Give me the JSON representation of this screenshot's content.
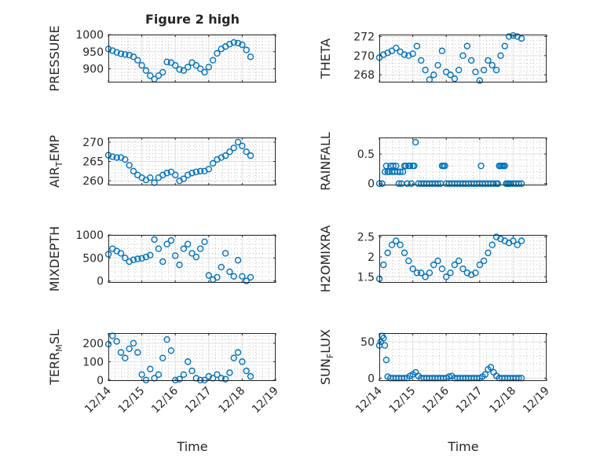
{
  "chart_data": [
    {
      "type": "scatter",
      "title": "Figure 2 high",
      "ylabel": "PRESSURE",
      "xlabel": "",
      "xlim": [
        "12/14",
        "12/19"
      ],
      "ylim": [
        860,
        1000
      ],
      "yticks": [
        900,
        950,
        1000
      ],
      "ytick_labels": [
        "900",
        "950",
        "1000"
      ],
      "xtick_labels": [],
      "grid": true,
      "minor_grid": true,
      "x": [
        "12/14 00:00",
        "12/14 03:00",
        "12/14 06:00",
        "12/14 09:00",
        "12/14 12:00",
        "12/14 15:00",
        "12/14 18:00",
        "12/14 21:00",
        "12/15 00:00",
        "12/15 03:00",
        "12/15 06:00",
        "12/15 09:00",
        "12/15 12:00",
        "12/15 15:00",
        "12/15 18:00",
        "12/15 21:00",
        "12/16 00:00",
        "12/16 03:00",
        "12/16 06:00",
        "12/16 09:00",
        "12/16 12:00",
        "12/16 15:00",
        "12/16 18:00",
        "12/16 21:00",
        "12/17 00:00",
        "12/17 03:00",
        "12/17 06:00",
        "12/17 09:00",
        "12/17 12:00",
        "12/17 15:00",
        "12/17 18:00",
        "12/17 21:00",
        "12/18 00:00",
        "12/18 03:00",
        "12/18 06:00"
      ],
      "y": [
        958,
        953,
        948,
        944,
        942,
        940,
        935,
        925,
        910,
        895,
        880,
        870,
        880,
        890,
        920,
        918,
        910,
        898,
        895,
        905,
        918,
        910,
        900,
        890,
        905,
        925,
        945,
        958,
        965,
        972,
        977,
        975,
        970,
        955,
        935
      ]
    },
    {
      "type": "scatter",
      "title": "",
      "ylabel": "THETA",
      "xlabel": "",
      "xlim": [
        "12/14",
        "12/19"
      ],
      "ylim": [
        267.2,
        272.2
      ],
      "yticks": [
        268,
        270,
        272
      ],
      "ytick_labels": [
        "268",
        "270",
        "272"
      ],
      "xtick_labels": [],
      "grid": true,
      "minor_grid": true,
      "x": [
        "12/14 00:00",
        "12/14 03:00",
        "12/14 06:00",
        "12/14 09:00",
        "12/14 12:00",
        "12/14 15:00",
        "12/14 18:00",
        "12/14 21:00",
        "12/15 00:00",
        "12/15 03:00",
        "12/15 06:00",
        "12/15 09:00",
        "12/15 12:00",
        "12/15 15:00",
        "12/15 18:00",
        "12/15 21:00",
        "12/16 00:00",
        "12/16 03:00",
        "12/16 06:00",
        "12/16 09:00",
        "12/16 12:00",
        "12/16 15:00",
        "12/16 18:00",
        "12/16 21:00",
        "12/17 00:00",
        "12/17 03:00",
        "12/17 06:00",
        "12/17 09:00",
        "12/17 12:00",
        "12/17 15:00",
        "12/17 18:00",
        "12/17 21:00",
        "12/18 00:00",
        "12/18 03:00",
        "12/18 06:00"
      ],
      "y": [
        269.8,
        270.1,
        270.3,
        270.5,
        270.8,
        270.4,
        270.1,
        270.0,
        270.2,
        271.0,
        269.5,
        268.5,
        267.5,
        268.0,
        269.0,
        270.5,
        268.3,
        268.0,
        267.6,
        268.5,
        270.0,
        271.0,
        269.5,
        268.3,
        267.4,
        268.5,
        269.5,
        269.0,
        268.5,
        270.0,
        271.0,
        272.0,
        272.1,
        272.0,
        271.8
      ]
    },
    {
      "type": "scatter",
      "title": "",
      "ylabel": "AIR_TEMP",
      "xlabel": "",
      "xlim": [
        "12/14",
        "12/19"
      ],
      "ylim": [
        258.8,
        271.2
      ],
      "yticks": [
        260,
        265,
        270
      ],
      "ytick_labels": [
        "260",
        "265",
        "270"
      ],
      "xtick_labels": [],
      "grid": true,
      "minor_grid": true,
      "x": [
        "12/14 00:00",
        "12/14 03:00",
        "12/14 06:00",
        "12/14 09:00",
        "12/14 12:00",
        "12/14 15:00",
        "12/14 18:00",
        "12/14 21:00",
        "12/15 00:00",
        "12/15 03:00",
        "12/15 06:00",
        "12/15 09:00",
        "12/15 12:00",
        "12/15 15:00",
        "12/15 18:00",
        "12/15 21:00",
        "12/16 00:00",
        "12/16 03:00",
        "12/16 06:00",
        "12/16 09:00",
        "12/16 12:00",
        "12/16 15:00",
        "12/16 18:00",
        "12/16 21:00",
        "12/17 00:00",
        "12/17 03:00",
        "12/17 06:00",
        "12/17 09:00",
        "12/17 12:00",
        "12/17 15:00",
        "12/17 18:00",
        "12/17 21:00",
        "12/18 00:00",
        "12/18 03:00",
        "12/18 06:00"
      ],
      "y": [
        266.6,
        266.2,
        266.0,
        266.0,
        265.5,
        264.0,
        262.5,
        261.5,
        260.8,
        260.2,
        260.8,
        259.5,
        260.8,
        261.5,
        262.0,
        262.3,
        261.5,
        260.0,
        260.5,
        261.5,
        262.0,
        262.3,
        262.5,
        262.5,
        263.0,
        264.5,
        265.5,
        266.0,
        266.5,
        267.5,
        268.5,
        270.0,
        269.0,
        267.5,
        266.5
      ]
    },
    {
      "type": "scatter",
      "title": "",
      "ylabel": "RAINFALL",
      "xlabel": "",
      "xlim": [
        "12/14",
        "12/19"
      ],
      "ylim": [
        -0.03,
        0.78
      ],
      "yticks": [
        0,
        0.5
      ],
      "ytick_labels": [
        "0",
        "0.5"
      ],
      "xtick_labels": [],
      "grid": true,
      "minor_grid": true,
      "x": [
        "12/14 00:00",
        "12/14 02:00",
        "12/14 04:00",
        "12/14 05:00",
        "12/14 06:00",
        "12/14 07:00",
        "12/14 08:00",
        "12/14 09:00",
        "12/14 10:00",
        "12/14 11:00",
        "12/14 12:00",
        "12/14 13:00",
        "12/14 14:00",
        "12/14 15:00",
        "12/14 16:00",
        "12/14 17:00",
        "12/14 18:00",
        "12/14 19:00",
        "12/14 20:00",
        "12/14 21:00",
        "12/14 22:00",
        "12/14 23:00",
        "12/15 00:00",
        "12/15 01:00",
        "12/15 02:00",
        "12/15 04:00",
        "12/15 06:00",
        "12/15 08:00",
        "12/15 10:00",
        "12/15 12:00",
        "12/15 14:00",
        "12/15 16:00",
        "12/15 18:00",
        "12/15 20:00",
        "12/15 21:00",
        "12/15 22:00",
        "12/15 23:00",
        "12/16 00:00",
        "12/16 02:00",
        "12/16 04:00",
        "12/16 06:00",
        "12/16 08:00",
        "12/16 10:00",
        "12/16 12:00",
        "12/16 14:00",
        "12/16 16:00",
        "12/16 18:00",
        "12/16 20:00",
        "12/16 22:00",
        "12/17 00:00",
        "12/17 01:00",
        "12/17 02:00",
        "12/17 04:00",
        "12/17 06:00",
        "12/17 08:00",
        "12/17 10:00",
        "12/17 12:00",
        "12/17 13:00",
        "12/17 14:00",
        "12/17 15:00",
        "12/17 16:00",
        "12/17 17:00",
        "12/17 18:00",
        "12/17 19:00",
        "12/17 20:00",
        "12/17 21:00",
        "12/17 22:00",
        "12/18 00:00",
        "12/18 02:00",
        "12/18 04:00",
        "12/18 06:00"
      ],
      "y": [
        0,
        0,
        0.2,
        0.3,
        0.2,
        0.2,
        0.3,
        0.2,
        0.3,
        0.2,
        0.3,
        0.2,
        0,
        0.2,
        0,
        0.2,
        0.3,
        0.3,
        0,
        0.3,
        0.3,
        0,
        0.3,
        0.3,
        0.7,
        0,
        0,
        0,
        0,
        0,
        0,
        0,
        0,
        0,
        0.3,
        0.3,
        0.3,
        0,
        0,
        0,
        0,
        0,
        0,
        0,
        0,
        0,
        0,
        0,
        0,
        0,
        0.3,
        0,
        0,
        0,
        0,
        0,
        0,
        0,
        0.3,
        0.3,
        0.3,
        0.3,
        0.3,
        0,
        0,
        0,
        0,
        0,
        0,
        0,
        0
      ]
    },
    {
      "type": "scatter",
      "title": "",
      "ylabel": "MIXDEPTH",
      "xlabel": "",
      "xlim": [
        "12/14",
        "12/19"
      ],
      "ylim": [
        -40,
        1000
      ],
      "yticks": [
        0,
        500,
        1000
      ],
      "ytick_labels": [
        "0",
        "500",
        "1000"
      ],
      "xtick_labels": [],
      "grid": true,
      "minor_grid": true,
      "x": [
        "12/14 00:00",
        "12/14 03:00",
        "12/14 06:00",
        "12/14 09:00",
        "12/14 12:00",
        "12/14 15:00",
        "12/14 18:00",
        "12/14 21:00",
        "12/15 00:00",
        "12/15 03:00",
        "12/15 06:00",
        "12/15 09:00",
        "12/15 12:00",
        "12/15 15:00",
        "12/15 18:00",
        "12/15 21:00",
        "12/16 00:00",
        "12/16 03:00",
        "12/16 06:00",
        "12/16 09:00",
        "12/16 12:00",
        "12/16 15:00",
        "12/16 18:00",
        "12/16 21:00",
        "12/17 00:00",
        "12/17 03:00",
        "12/17 06:00",
        "12/17 09:00",
        "12/17 12:00",
        "12/17 15:00",
        "12/17 18:00",
        "12/17 21:00",
        "12/18 00:00",
        "12/18 03:00",
        "12/18 06:00"
      ],
      "y": [
        580,
        700,
        650,
        600,
        500,
        420,
        460,
        480,
        490,
        520,
        560,
        900,
        700,
        420,
        800,
        880,
        550,
        350,
        700,
        800,
        600,
        520,
        700,
        850,
        120,
        30,
        80,
        300,
        600,
        200,
        100,
        450,
        100,
        0,
        80
      ]
    },
    {
      "type": "scatter",
      "title": "",
      "ylabel": "H2OMIXRA",
      "xlabel": "",
      "xlim": [
        "12/14",
        "12/19"
      ],
      "ylim": [
        1.35,
        2.55
      ],
      "yticks": [
        1.5,
        2,
        2.5
      ],
      "ytick_labels": [
        "1.5",
        "2",
        "2.5"
      ],
      "xtick_labels": [],
      "grid": true,
      "minor_grid": true,
      "x": [
        "12/14 00:00",
        "12/14 03:00",
        "12/14 06:00",
        "12/14 09:00",
        "12/14 12:00",
        "12/14 15:00",
        "12/14 18:00",
        "12/14 21:00",
        "12/15 00:00",
        "12/15 03:00",
        "12/15 06:00",
        "12/15 09:00",
        "12/15 12:00",
        "12/15 15:00",
        "12/15 18:00",
        "12/15 21:00",
        "12/16 00:00",
        "12/16 03:00",
        "12/16 06:00",
        "12/16 09:00",
        "12/16 12:00",
        "12/16 15:00",
        "12/16 18:00",
        "12/16 21:00",
        "12/17 00:00",
        "12/17 03:00",
        "12/17 06:00",
        "12/17 09:00",
        "12/17 12:00",
        "12/17 15:00",
        "12/17 18:00",
        "12/17 21:00",
        "12/18 00:00",
        "12/18 03:00",
        "12/18 06:00"
      ],
      "y": [
        1.45,
        1.8,
        2.1,
        2.3,
        2.4,
        2.3,
        2.1,
        1.9,
        1.7,
        1.6,
        1.6,
        1.5,
        1.6,
        1.8,
        1.9,
        1.7,
        1.5,
        1.6,
        1.8,
        1.9,
        1.7,
        1.6,
        1.55,
        1.6,
        1.8,
        1.9,
        2.1,
        2.3,
        2.5,
        2.45,
        2.4,
        2.35,
        2.4,
        2.3,
        2.4
      ]
    },
    {
      "type": "scatter",
      "title": "",
      "ylabel": "TERR_MSL",
      "xlabel": "",
      "xlim": [
        "12/14",
        "12/19"
      ],
      "ylim": [
        -5,
        255
      ],
      "yticks": [
        0,
        100,
        200
      ],
      "ytick_labels": [
        "0",
        "100",
        "200"
      ],
      "xtick_labels": [],
      "grid": true,
      "minor_grid": true,
      "x": [
        "12/14 00:00",
        "12/14 03:00",
        "12/14 06:00",
        "12/14 09:00",
        "12/14 12:00",
        "12/14 15:00",
        "12/14 18:00",
        "12/14 21:00",
        "12/15 00:00",
        "12/15 03:00",
        "12/15 06:00",
        "12/15 09:00",
        "12/15 12:00",
        "12/15 15:00",
        "12/15 18:00",
        "12/15 21:00",
        "12/16 00:00",
        "12/16 03:00",
        "12/16 06:00",
        "12/16 09:00",
        "12/16 12:00",
        "12/16 15:00",
        "12/16 18:00",
        "12/16 21:00",
        "12/17 00:00",
        "12/17 03:00",
        "12/17 06:00",
        "12/17 09:00",
        "12/17 12:00",
        "12/17 15:00",
        "12/17 18:00",
        "12/17 21:00",
        "12/18 00:00",
        "12/18 03:00",
        "12/18 06:00"
      ],
      "y": [
        195,
        240,
        210,
        150,
        120,
        170,
        200,
        150,
        30,
        0,
        60,
        10,
        30,
        120,
        220,
        160,
        0,
        5,
        30,
        100,
        50,
        10,
        0,
        0,
        20,
        10,
        30,
        10,
        5,
        40,
        120,
        150,
        100,
        50,
        20
      ]
    },
    {
      "type": "scatter",
      "title": "",
      "ylabel": "SUN_FLUX",
      "xlabel": "",
      "xlim": [
        "12/14",
        "12/19"
      ],
      "ylim": [
        -4,
        62
      ],
      "yticks": [
        0,
        50
      ],
      "ytick_labels": [
        "0",
        "50"
      ],
      "xtick_labels": [],
      "grid": true,
      "minor_grid": true,
      "x": [
        "12/14 00:00",
        "12/14 01:00",
        "12/14 02:00",
        "12/14 03:00",
        "12/14 04:00",
        "12/14 05:00",
        "12/14 06:00",
        "12/14 08:00",
        "12/14 10:00",
        "12/14 12:00",
        "12/14 14:00",
        "12/14 16:00",
        "12/14 18:00",
        "12/14 20:00",
        "12/14 22:00",
        "12/15 00:00",
        "12/15 02:00",
        "12/15 04:00",
        "12/15 06:00",
        "12/15 08:00",
        "12/15 10:00",
        "12/15 12:00",
        "12/15 14:00",
        "12/15 16:00",
        "12/15 18:00",
        "12/15 20:00",
        "12/15 22:00",
        "12/16 00:00",
        "12/16 02:00",
        "12/16 04:00",
        "12/16 06:00",
        "12/16 08:00",
        "12/16 10:00",
        "12/16 12:00",
        "12/16 14:00",
        "12/16 16:00",
        "12/16 18:00",
        "12/16 20:00",
        "12/16 22:00",
        "12/17 00:00",
        "12/17 02:00",
        "12/17 04:00",
        "12/17 06:00",
        "12/17 08:00",
        "12/17 10:00",
        "12/17 12:00",
        "12/17 14:00",
        "12/17 16:00",
        "12/17 18:00",
        "12/17 20:00",
        "12/17 22:00",
        "12/18 00:00",
        "12/18 02:00",
        "12/18 04:00",
        "12/18 06:00"
      ],
      "y": [
        45,
        50,
        58,
        55,
        45,
        25,
        2,
        0,
        0,
        0,
        0,
        0,
        0,
        0,
        3,
        5,
        8,
        3,
        0,
        0,
        0,
        0,
        0,
        0,
        0,
        0,
        0,
        0,
        2,
        3,
        0,
        0,
        0,
        0,
        0,
        0,
        0,
        0,
        0,
        0,
        2,
        5,
        12,
        15,
        8,
        3,
        0,
        0,
        0,
        0,
        0,
        0,
        0,
        0,
        0
      ]
    }
  ],
  "shared_x": {
    "xtick_labels": [
      "12/14",
      "12/15",
      "12/16",
      "12/17",
      "12/18",
      "12/19"
    ],
    "xlabel": "Time"
  }
}
